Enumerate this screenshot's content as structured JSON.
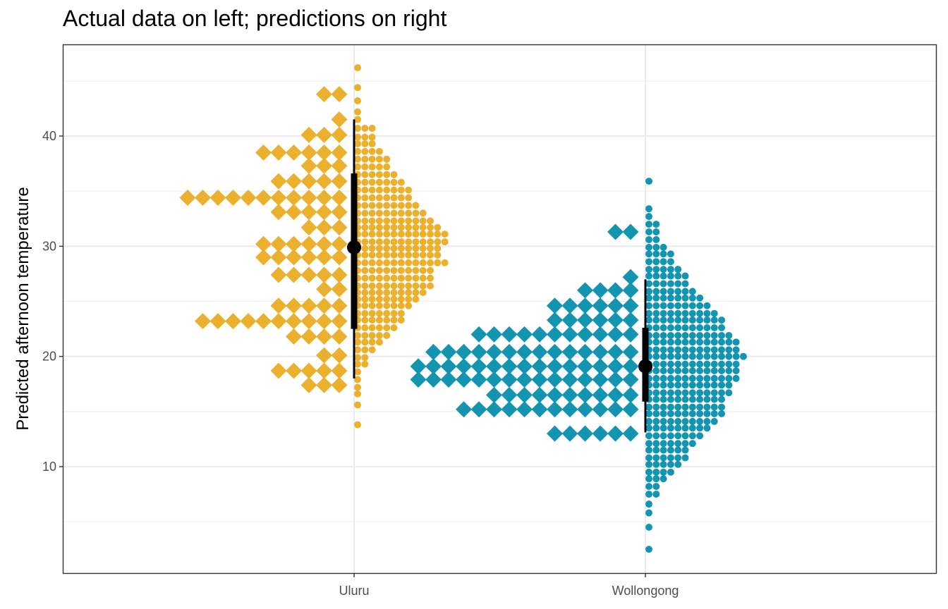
{
  "chart_data": {
    "type": "dotplot",
    "title": "Actual data on left; predictions on right",
    "xlabel": "",
    "ylabel": "Predicted afternoon temperature",
    "categories": [
      "Uluru",
      "Wollongong"
    ],
    "yticks": [
      10,
      20,
      30,
      40
    ],
    "ylim": [
      0.8,
      48
    ],
    "grid": true,
    "legend": "none",
    "colors": {
      "Uluru": "#EBB12E",
      "Wollongong": "#1395B2",
      "interval": "#000000",
      "grid": "#EBEBEB",
      "panel_border": "#333333"
    },
    "actual_data": [
      {
        "category": "Uluru",
        "rows": [
          {
            "y": 43.8,
            "count": 2
          },
          {
            "y": 41.5,
            "count": 1
          },
          {
            "y": 40.1,
            "count": 3
          },
          {
            "y": 38.5,
            "count": 6
          },
          {
            "y": 37.3,
            "count": 3
          },
          {
            "y": 35.9,
            "count": 5
          },
          {
            "y": 34.4,
            "count": 11
          },
          {
            "y": 33.1,
            "count": 5
          },
          {
            "y": 31.7,
            "count": 3
          },
          {
            "y": 30.2,
            "count": 6
          },
          {
            "y": 29.0,
            "count": 6
          },
          {
            "y": 27.4,
            "count": 5
          },
          {
            "y": 26.1,
            "count": 2
          },
          {
            "y": 24.6,
            "count": 5
          },
          {
            "y": 23.2,
            "count": 10
          },
          {
            "y": 21.8,
            "count": 4
          },
          {
            "y": 20.1,
            "count": 2
          },
          {
            "y": 18.7,
            "count": 5
          },
          {
            "y": 17.4,
            "count": 3
          }
        ]
      },
      {
        "category": "Wollongong",
        "rows": [
          {
            "y": 31.3,
            "count": 2
          },
          {
            "y": 27.2,
            "count": 1
          },
          {
            "y": 26.0,
            "count": 4
          },
          {
            "y": 24.6,
            "count": 6
          },
          {
            "y": 23.3,
            "count": 6
          },
          {
            "y": 22.0,
            "count": 11
          },
          {
            "y": 20.4,
            "count": 14
          },
          {
            "y": 19.1,
            "count": 15
          },
          {
            "y": 17.9,
            "count": 15
          },
          {
            "y": 16.5,
            "count": 10
          },
          {
            "y": 15.2,
            "count": 12
          },
          {
            "y": 13.0,
            "count": 6
          }
        ]
      }
    ],
    "predictions": [
      {
        "category": "Uluru",
        "rows": [
          {
            "y": 46.2,
            "count": 1
          },
          {
            "y": 44.4,
            "count": 1
          },
          {
            "y": 43.2,
            "count": 1
          },
          {
            "y": 42.2,
            "count": 1
          },
          {
            "y": 41.5,
            "count": 1
          },
          {
            "y": 40.7,
            "count": 3
          },
          {
            "y": 39.9,
            "count": 3
          },
          {
            "y": 39.3,
            "count": 3
          },
          {
            "y": 38.6,
            "count": 4
          },
          {
            "y": 37.9,
            "count": 5
          },
          {
            "y": 37.2,
            "count": 5
          },
          {
            "y": 36.5,
            "count": 6
          },
          {
            "y": 35.8,
            "count": 7
          },
          {
            "y": 35.1,
            "count": 8
          },
          {
            "y": 34.4,
            "count": 8
          },
          {
            "y": 33.7,
            "count": 9
          },
          {
            "y": 33.0,
            "count": 10
          },
          {
            "y": 32.3,
            "count": 11
          },
          {
            "y": 31.7,
            "count": 12
          },
          {
            "y": 31.1,
            "count": 13
          },
          {
            "y": 30.4,
            "count": 13
          },
          {
            "y": 29.8,
            "count": 12
          },
          {
            "y": 29.2,
            "count": 12
          },
          {
            "y": 28.5,
            "count": 13
          },
          {
            "y": 27.8,
            "count": 11
          },
          {
            "y": 27.1,
            "count": 11
          },
          {
            "y": 26.4,
            "count": 11
          },
          {
            "y": 25.8,
            "count": 10
          },
          {
            "y": 25.2,
            "count": 9
          },
          {
            "y": 24.6,
            "count": 8
          },
          {
            "y": 23.9,
            "count": 7
          },
          {
            "y": 23.3,
            "count": 7
          },
          {
            "y": 22.6,
            "count": 6
          },
          {
            "y": 21.9,
            "count": 5
          },
          {
            "y": 21.3,
            "count": 4
          },
          {
            "y": 20.6,
            "count": 3
          },
          {
            "y": 19.9,
            "count": 2
          },
          {
            "y": 19.3,
            "count": 2
          },
          {
            "y": 18.6,
            "count": 1
          },
          {
            "y": 17.9,
            "count": 1
          },
          {
            "y": 17.2,
            "count": 1
          },
          {
            "y": 16.6,
            "count": 1
          },
          {
            "y": 15.6,
            "count": 1
          },
          {
            "y": 13.8,
            "count": 1
          }
        ]
      },
      {
        "category": "Wollongong",
        "rows": [
          {
            "y": 35.9,
            "count": 1
          },
          {
            "y": 33.4,
            "count": 1
          },
          {
            "y": 32.7,
            "count": 1
          },
          {
            "y": 32.0,
            "count": 2
          },
          {
            "y": 31.3,
            "count": 2
          },
          {
            "y": 30.6,
            "count": 2
          },
          {
            "y": 29.9,
            "count": 3
          },
          {
            "y": 29.3,
            "count": 4
          },
          {
            "y": 28.6,
            "count": 4
          },
          {
            "y": 27.9,
            "count": 5
          },
          {
            "y": 27.3,
            "count": 6
          },
          {
            "y": 26.6,
            "count": 6
          },
          {
            "y": 25.9,
            "count": 7
          },
          {
            "y": 25.3,
            "count": 8
          },
          {
            "y": 24.6,
            "count": 9
          },
          {
            "y": 23.9,
            "count": 10
          },
          {
            "y": 23.3,
            "count": 11
          },
          {
            "y": 22.6,
            "count": 11
          },
          {
            "y": 21.9,
            "count": 12
          },
          {
            "y": 21.3,
            "count": 13
          },
          {
            "y": 20.6,
            "count": 13
          },
          {
            "y": 20.0,
            "count": 14
          },
          {
            "y": 19.3,
            "count": 13
          },
          {
            "y": 18.7,
            "count": 13
          },
          {
            "y": 18.0,
            "count": 13
          },
          {
            "y": 17.4,
            "count": 12
          },
          {
            "y": 16.7,
            "count": 12
          },
          {
            "y": 16.1,
            "count": 11
          },
          {
            "y": 15.4,
            "count": 11
          },
          {
            "y": 14.8,
            "count": 11
          },
          {
            "y": 14.1,
            "count": 10
          },
          {
            "y": 13.5,
            "count": 9
          },
          {
            "y": 12.8,
            "count": 8
          },
          {
            "y": 12.1,
            "count": 7
          },
          {
            "y": 11.5,
            "count": 6
          },
          {
            "y": 10.8,
            "count": 6
          },
          {
            "y": 10.2,
            "count": 5
          },
          {
            "y": 9.5,
            "count": 4
          },
          {
            "y": 8.9,
            "count": 3
          },
          {
            "y": 8.2,
            "count": 2
          },
          {
            "y": 7.5,
            "count": 2
          },
          {
            "y": 6.6,
            "count": 1
          },
          {
            "y": 5.8,
            "count": 1
          },
          {
            "y": 4.5,
            "count": 1
          },
          {
            "y": 2.5,
            "count": 1
          }
        ]
      }
    ],
    "intervals": [
      {
        "category": "Uluru",
        "point": 29.9,
        "inner": [
          22.5,
          36.6
        ],
        "outer": [
          18.0,
          41.5
        ]
      },
      {
        "category": "Wollongong",
        "point": 19.1,
        "inner": [
          15.9,
          22.6
        ],
        "outer": [
          13.1,
          27.0
        ]
      }
    ]
  }
}
